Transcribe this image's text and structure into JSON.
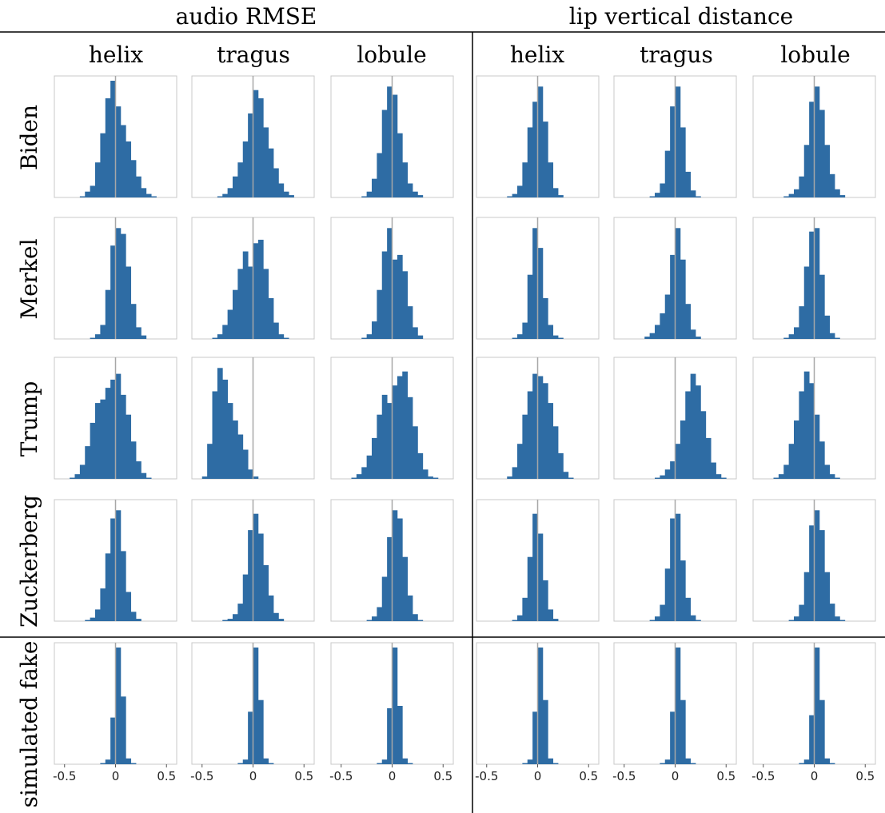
{
  "figure": {
    "groups": [
      "audio RMSE",
      "lip vertical distance"
    ],
    "columns": [
      "helix",
      "tragus",
      "lobule"
    ],
    "rows": [
      "Biden",
      "Merkel",
      "Trump",
      "Zuckerberg",
      "simulated fake"
    ],
    "colors": {
      "bar": "#2e6ca4",
      "zero_line": "#a7a7a7",
      "frame": "#c8c8c8",
      "rule": "#000000",
      "text": "#000000"
    }
  },
  "chart_data": {
    "type": "bar",
    "description_units": "histogram bin heights relative to the tallest bin of each panel",
    "xlim": [
      -0.6,
      0.6
    ],
    "xticks": [
      -0.5,
      0,
      0.5
    ],
    "xtick_labels": [
      "-0.5",
      "0",
      "0.5"
    ],
    "xticks_shown_on_row": "simulated fake",
    "bin_width": 0.05,
    "bin_starts": [
      -0.55,
      -0.5,
      -0.45,
      -0.4,
      -0.35,
      -0.3,
      -0.25,
      -0.2,
      -0.15,
      -0.1,
      -0.05,
      0.0,
      0.05,
      0.1,
      0.15,
      0.2,
      0.25,
      0.3,
      0.35,
      0.4,
      0.45,
      0.5,
      0.55
    ],
    "zero_line": 0,
    "panels": [
      [
        {
          "row": "Biden",
          "group": "audio RMSE",
          "column": "helix",
          "values": [
            0,
            0,
            0,
            0,
            0.01,
            0.05,
            0.1,
            0.3,
            0.55,
            0.85,
            1.0,
            0.78,
            0.62,
            0.48,
            0.32,
            0.18,
            0.08,
            0.03,
            0.01,
            0,
            0,
            0,
            0
          ]
        },
        {
          "row": "Biden",
          "group": "audio RMSE",
          "column": "tragus",
          "values": [
            0,
            0,
            0,
            0,
            0.01,
            0.03,
            0.08,
            0.18,
            0.3,
            0.48,
            0.72,
            0.92,
            0.85,
            0.6,
            0.42,
            0.25,
            0.12,
            0.05,
            0.02,
            0,
            0,
            0,
            0
          ]
        },
        {
          "row": "Biden",
          "group": "audio RMSE",
          "column": "lobule",
          "values": [
            0,
            0,
            0,
            0,
            0,
            0.01,
            0.05,
            0.16,
            0.38,
            0.75,
            0.95,
            0.88,
            0.55,
            0.3,
            0.12,
            0.05,
            0.02,
            0,
            0,
            0,
            0,
            0,
            0
          ]
        },
        {
          "row": "Biden",
          "group": "lip vertical distance",
          "column": "helix",
          "values": [
            0,
            0,
            0,
            0,
            0,
            0.01,
            0.03,
            0.1,
            0.3,
            0.6,
            0.82,
            0.95,
            0.65,
            0.3,
            0.08,
            0.02,
            0,
            0,
            0,
            0,
            0,
            0,
            0
          ]
        },
        {
          "row": "Biden",
          "group": "lip vertical distance",
          "column": "tragus",
          "values": [
            0,
            0,
            0,
            0,
            0,
            0,
            0.01,
            0.04,
            0.12,
            0.4,
            0.78,
            0.95,
            0.6,
            0.22,
            0.06,
            0.01,
            0,
            0,
            0,
            0,
            0,
            0,
            0
          ]
        },
        {
          "row": "Biden",
          "group": "lip vertical distance",
          "column": "lobule",
          "values": [
            0,
            0,
            0,
            0,
            0,
            0.01,
            0.03,
            0.07,
            0.18,
            0.45,
            0.82,
            0.95,
            0.75,
            0.45,
            0.2,
            0.07,
            0.02,
            0,
            0,
            0,
            0,
            0,
            0
          ]
        }
      ],
      [
        {
          "row": "Merkel",
          "group": "audio RMSE",
          "column": "helix",
          "values": [
            0,
            0,
            0,
            0,
            0,
            0,
            0.01,
            0.04,
            0.12,
            0.42,
            0.8,
            0.95,
            0.9,
            0.62,
            0.3,
            0.1,
            0.03,
            0,
            0,
            0,
            0,
            0,
            0
          ]
        },
        {
          "row": "Merkel",
          "group": "audio RMSE",
          "column": "tragus",
          "values": [
            0,
            0,
            0,
            0.01,
            0.04,
            0.12,
            0.25,
            0.42,
            0.6,
            0.75,
            0.62,
            0.82,
            0.85,
            0.6,
            0.35,
            0.14,
            0.04,
            0.01,
            0,
            0,
            0,
            0,
            0
          ]
        },
        {
          "row": "Merkel",
          "group": "audio RMSE",
          "column": "lobule",
          "values": [
            0,
            0,
            0,
            0,
            0,
            0.01,
            0.04,
            0.15,
            0.42,
            0.75,
            0.95,
            0.68,
            0.72,
            0.58,
            0.28,
            0.1,
            0.03,
            0,
            0,
            0,
            0,
            0,
            0
          ]
        },
        {
          "row": "Merkel",
          "group": "lip vertical distance",
          "column": "helix",
          "values": [
            0,
            0,
            0,
            0,
            0,
            0,
            0.01,
            0.04,
            0.14,
            0.55,
            0.95,
            0.78,
            0.35,
            0.12,
            0.03,
            0.01,
            0,
            0,
            0,
            0,
            0,
            0,
            0
          ]
        },
        {
          "row": "Merkel",
          "group": "lip vertical distance",
          "column": "tragus",
          "values": [
            0,
            0,
            0,
            0,
            0,
            0.02,
            0.05,
            0.12,
            0.22,
            0.38,
            0.72,
            0.95,
            0.68,
            0.3,
            0.08,
            0.02,
            0,
            0,
            0,
            0,
            0,
            0,
            0
          ]
        },
        {
          "row": "Merkel",
          "group": "lip vertical distance",
          "column": "lobule",
          "values": [
            0,
            0,
            0,
            0,
            0,
            0.01,
            0.04,
            0.1,
            0.28,
            0.62,
            0.92,
            0.95,
            0.55,
            0.2,
            0.05,
            0.01,
            0,
            0,
            0,
            0,
            0,
            0,
            0
          ]
        }
      ],
      [
        {
          "row": "Trump",
          "group": "audio RMSE",
          "column": "helix",
          "values": [
            0,
            0,
            0.01,
            0.04,
            0.12,
            0.28,
            0.48,
            0.65,
            0.68,
            0.78,
            0.85,
            0.9,
            0.72,
            0.55,
            0.32,
            0.15,
            0.05,
            0.01,
            0,
            0,
            0,
            0,
            0
          ]
        },
        {
          "row": "Trump",
          "group": "audio RMSE",
          "column": "tragus",
          "values": [
            0,
            0.02,
            0.3,
            0.75,
            0.95,
            0.85,
            0.65,
            0.5,
            0.38,
            0.25,
            0.08,
            0.02,
            0,
            0,
            0,
            0,
            0,
            0,
            0,
            0,
            0,
            0,
            0
          ]
        },
        {
          "row": "Trump",
          "group": "audio RMSE",
          "column": "lobule",
          "values": [
            0,
            0,
            0,
            0.01,
            0.04,
            0.1,
            0.2,
            0.35,
            0.55,
            0.72,
            0.65,
            0.8,
            0.88,
            0.92,
            0.7,
            0.45,
            0.22,
            0.08,
            0.02,
            0.01,
            0,
            0,
            0
          ]
        },
        {
          "row": "Trump",
          "group": "lip vertical distance",
          "column": "helix",
          "values": [
            0,
            0,
            0,
            0,
            0,
            0.02,
            0.1,
            0.3,
            0.55,
            0.75,
            0.9,
            0.88,
            0.82,
            0.65,
            0.45,
            0.22,
            0.06,
            0.01,
            0,
            0,
            0,
            0,
            0
          ]
        },
        {
          "row": "Trump",
          "group": "lip vertical distance",
          "column": "tragus",
          "values": [
            0,
            0,
            0,
            0,
            0,
            0,
            0,
            0.01,
            0.03,
            0.08,
            0.15,
            0.3,
            0.5,
            0.75,
            0.9,
            0.8,
            0.58,
            0.35,
            0.14,
            0.04,
            0.01,
            0,
            0
          ]
        },
        {
          "row": "Trump",
          "group": "lip vertical distance",
          "column": "lobule",
          "values": [
            0,
            0,
            0,
            0.01,
            0.04,
            0.12,
            0.3,
            0.5,
            0.75,
            0.92,
            0.82,
            0.55,
            0.32,
            0.12,
            0.04,
            0.01,
            0,
            0,
            0,
            0,
            0,
            0,
            0
          ]
        }
      ],
      [
        {
          "row": "Zuckerberg",
          "group": "audio RMSE",
          "column": "helix",
          "values": [
            0,
            0,
            0,
            0,
            0,
            0.01,
            0.03,
            0.1,
            0.28,
            0.58,
            0.88,
            0.95,
            0.6,
            0.25,
            0.08,
            0.02,
            0,
            0,
            0,
            0,
            0,
            0,
            0
          ]
        },
        {
          "row": "Zuckerberg",
          "group": "audio RMSE",
          "column": "tragus",
          "values": [
            0,
            0,
            0,
            0,
            0,
            0.01,
            0.02,
            0.06,
            0.15,
            0.4,
            0.78,
            0.92,
            0.75,
            0.48,
            0.22,
            0.07,
            0.02,
            0,
            0,
            0,
            0,
            0,
            0
          ]
        },
        {
          "row": "Zuckerberg",
          "group": "audio RMSE",
          "column": "lobule",
          "values": [
            0,
            0,
            0,
            0,
            0,
            0,
            0.01,
            0.04,
            0.12,
            0.38,
            0.72,
            0.95,
            0.88,
            0.55,
            0.22,
            0.06,
            0.01,
            0,
            0,
            0,
            0,
            0,
            0
          ]
        },
        {
          "row": "Zuckerberg",
          "group": "lip vertical distance",
          "column": "helix",
          "values": [
            0,
            0,
            0,
            0,
            0,
            0,
            0.01,
            0.05,
            0.2,
            0.55,
            0.92,
            0.75,
            0.35,
            0.1,
            0.02,
            0,
            0,
            0,
            0,
            0,
            0,
            0,
            0
          ]
        },
        {
          "row": "Zuckerberg",
          "group": "lip vertical distance",
          "column": "tragus",
          "values": [
            0,
            0,
            0,
            0,
            0,
            0,
            0.01,
            0.04,
            0.14,
            0.45,
            0.88,
            0.92,
            0.52,
            0.2,
            0.05,
            0.01,
            0,
            0,
            0,
            0,
            0,
            0,
            0
          ]
        },
        {
          "row": "Zuckerberg",
          "group": "lip vertical distance",
          "column": "lobule",
          "values": [
            0,
            0,
            0,
            0,
            0,
            0,
            0.01,
            0.04,
            0.14,
            0.42,
            0.82,
            0.95,
            0.78,
            0.42,
            0.15,
            0.04,
            0.01,
            0,
            0,
            0,
            0,
            0,
            0
          ]
        }
      ],
      [
        {
          "row": "simulated fake",
          "group": "audio RMSE",
          "column": "helix",
          "values": [
            0,
            0,
            0,
            0,
            0,
            0,
            0,
            0,
            0.01,
            0.04,
            0.4,
            1.0,
            0.58,
            0.05,
            0.01,
            0,
            0,
            0,
            0,
            0,
            0,
            0,
            0
          ]
        },
        {
          "row": "simulated fake",
          "group": "audio RMSE",
          "column": "tragus",
          "values": [
            0,
            0,
            0,
            0,
            0,
            0,
            0,
            0,
            0.01,
            0.04,
            0.45,
            1.0,
            0.55,
            0.05,
            0.01,
            0,
            0,
            0,
            0,
            0,
            0,
            0,
            0
          ]
        },
        {
          "row": "simulated fake",
          "group": "audio RMSE",
          "column": "lobule",
          "values": [
            0,
            0,
            0,
            0,
            0,
            0,
            0,
            0,
            0.01,
            0.04,
            0.48,
            1.0,
            0.5,
            0.05,
            0.01,
            0,
            0,
            0,
            0,
            0,
            0,
            0,
            0
          ]
        },
        {
          "row": "simulated fake",
          "group": "lip vertical distance",
          "column": "helix",
          "values": [
            0,
            0,
            0,
            0,
            0,
            0,
            0,
            0,
            0.01,
            0.04,
            0.45,
            1.0,
            0.55,
            0.05,
            0.01,
            0,
            0,
            0,
            0,
            0,
            0,
            0,
            0
          ]
        },
        {
          "row": "simulated fake",
          "group": "lip vertical distance",
          "column": "tragus",
          "values": [
            0,
            0,
            0,
            0,
            0,
            0,
            0,
            0,
            0.01,
            0.04,
            0.45,
            1.0,
            0.55,
            0.05,
            0.01,
            0,
            0,
            0,
            0,
            0,
            0,
            0,
            0
          ]
        },
        {
          "row": "simulated fake",
          "group": "lip vertical distance",
          "column": "lobule",
          "values": [
            0,
            0,
            0,
            0,
            0,
            0,
            0,
            0,
            0.01,
            0.04,
            0.42,
            1.0,
            0.55,
            0.05,
            0.01,
            0,
            0,
            0,
            0,
            0,
            0,
            0,
            0
          ]
        }
      ]
    ]
  }
}
